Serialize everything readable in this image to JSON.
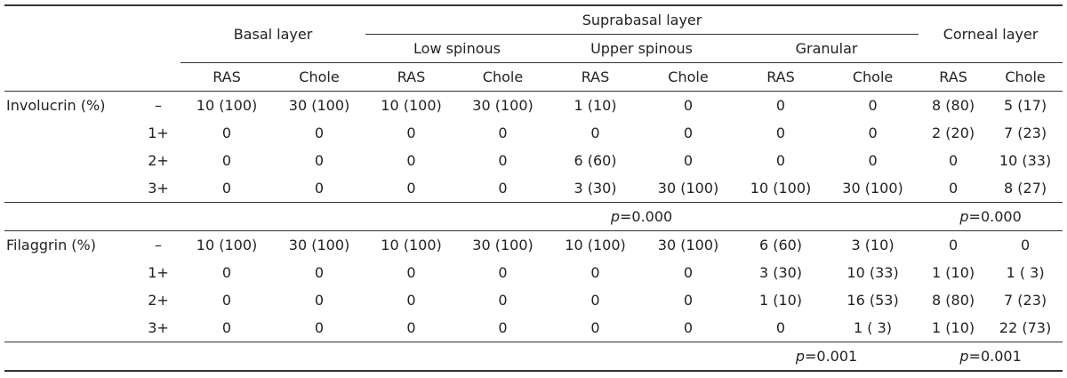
{
  "header": {
    "basal": "Basal layer",
    "suprabasal": "Suprabasal layer",
    "corneal": "Corneal layer",
    "sub": [
      "Low spinous",
      "Upper spinous",
      "Granular"
    ],
    "col_labels": [
      "RAS",
      "Chole",
      "RAS",
      "Chole",
      "RAS",
      "Chole",
      "RAS",
      "Chole",
      "RAS",
      "Chole"
    ]
  },
  "groups": [
    {
      "label": "Involucrin (%)",
      "rows": [
        {
          "grade": "–",
          "values": [
            "10 (100)",
            "30 (100)",
            "10 (100)",
            "30 (100)",
            "1 (10)",
            "0",
            "0",
            "0",
            "8 (80)",
            "5 (17)"
          ]
        },
        {
          "grade": "1+",
          "values": [
            "0",
            "0",
            "0",
            "0",
            "0",
            "0",
            "0",
            "0",
            "2 (20)",
            "7 (23)"
          ]
        },
        {
          "grade": "2+",
          "values": [
            "0",
            "0",
            "0",
            "0",
            "6 (60)",
            "0",
            "0",
            "0",
            "0",
            "10 (33)"
          ]
        },
        {
          "grade": "3+",
          "values": [
            "0",
            "0",
            "0",
            "0",
            "3 (30)",
            "30 (100)",
            "10 (100)",
            "30 (100)",
            "0",
            "8 (27)"
          ]
        }
      ],
      "p_supra": {
        "sym": "p",
        "val": "=0.000"
      },
      "p_corneal": {
        "sym": "p",
        "val": "=0.000"
      }
    },
    {
      "label": "Filaggrin (%)",
      "rows": [
        {
          "grade": "–",
          "values": [
            "10 (100)",
            "30 (100)",
            "10 (100)",
            "30 (100)",
            "10 (100)",
            "30 (100)",
            "6 (60)",
            "3 (10)",
            "0",
            "0"
          ]
        },
        {
          "grade": "1+",
          "values": [
            "0",
            "0",
            "0",
            "0",
            "0",
            "0",
            "3 (30)",
            "10 (33)",
            "1 (10)",
            "1 ( 3)"
          ]
        },
        {
          "grade": "2+",
          "values": [
            "0",
            "0",
            "0",
            "0",
            "0",
            "0",
            "1 (10)",
            "16 (53)",
            "8 (80)",
            "7 (23)"
          ]
        },
        {
          "grade": "3+",
          "values": [
            "0",
            "0",
            "0",
            "0",
            "0",
            "0",
            "0",
            "1 ( 3)",
            "1 (10)",
            "22 (73)"
          ]
        }
      ],
      "p_supra": {
        "sym": "p",
        "val": "=0.001"
      },
      "p_corneal": {
        "sym": "p",
        "val": "=0.001"
      }
    }
  ]
}
